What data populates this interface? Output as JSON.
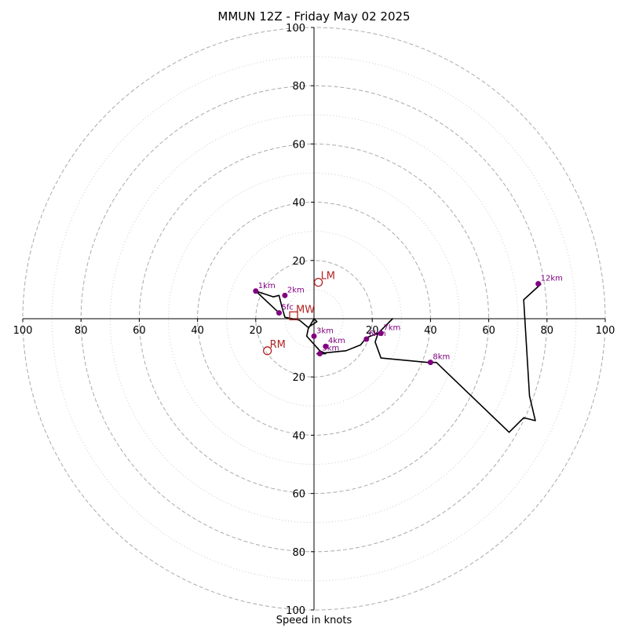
{
  "chart_data": {
    "type": "hodograph",
    "title": "MMUN 12Z - Friday May 02 2025",
    "xlabel": "Speed in knots",
    "ylabel": "",
    "xlim": [
      -100,
      100
    ],
    "ylim": [
      -100,
      100
    ],
    "ring_major": [
      20,
      40,
      60,
      80,
      100
    ],
    "ring_minor": [
      10,
      30,
      50,
      70,
      90
    ],
    "x_ticks": [
      {
        "value": -100,
        "label": "100"
      },
      {
        "value": -80,
        "label": "80"
      },
      {
        "value": -60,
        "label": "60"
      },
      {
        "value": -40,
        "label": "40"
      },
      {
        "value": -20,
        "label": "20"
      },
      {
        "value": 20,
        "label": "20"
      },
      {
        "value": 40,
        "label": "40"
      },
      {
        "value": 60,
        "label": "60"
      },
      {
        "value": 80,
        "label": "80"
      },
      {
        "value": 100,
        "label": "100"
      }
    ],
    "y_ticks": [
      {
        "value": 100,
        "label": "100"
      },
      {
        "value": 80,
        "label": "80"
      },
      {
        "value": 60,
        "label": "60"
      },
      {
        "value": 40,
        "label": "40"
      },
      {
        "value": 20,
        "label": "20"
      },
      {
        "value": -20,
        "label": "20"
      },
      {
        "value": -40,
        "label": "40"
      },
      {
        "value": -60,
        "label": "60"
      },
      {
        "value": -80,
        "label": "80"
      },
      {
        "value": -100,
        "label": "100"
      }
    ],
    "trace": [
      [
        -12,
        2
      ],
      [
        -20,
        9.5
      ],
      [
        -14,
        7.5
      ],
      [
        -12,
        8
      ],
      [
        -11,
        4
      ],
      [
        -10,
        0.5
      ],
      [
        -5,
        -0.5
      ],
      [
        -2,
        -3
      ],
      [
        1,
        -1
      ],
      [
        0,
        0
      ],
      [
        -2,
        -3.5
      ],
      [
        -2.5,
        -6
      ],
      [
        2,
        -11
      ],
      [
        4,
        -12
      ],
      [
        1,
        -12
      ],
      [
        11,
        -11
      ],
      [
        16,
        -9
      ],
      [
        18,
        -6.5
      ],
      [
        22,
        -5
      ],
      [
        27,
        0
      ],
      [
        22,
        -5
      ],
      [
        21,
        -8
      ],
      [
        23,
        -13.5
      ],
      [
        39,
        -15
      ],
      [
        42,
        -15
      ],
      [
        67,
        -39
      ],
      [
        72,
        -34
      ],
      [
        76,
        -35
      ],
      [
        74,
        -26.5
      ],
      [
        72,
        6.5
      ],
      [
        78,
        12
      ]
    ],
    "points": [
      {
        "label": "5fc",
        "u": -12,
        "v": 2
      },
      {
        "label": "1km",
        "u": -20,
        "v": 9.5
      },
      {
        "label": "2km",
        "u": -10,
        "v": 8
      },
      {
        "label": "3km",
        "u": 0,
        "v": -6
      },
      {
        "label": "4km",
        "u": 4,
        "v": -9.5
      },
      {
        "label": "5km",
        "u": 2,
        "v": -12
      },
      {
        "label": "6km",
        "u": 18,
        "v": -7
      },
      {
        "label": "7km",
        "u": 23,
        "v": -5
      },
      {
        "label": "8km",
        "u": 40,
        "v": -15
      },
      {
        "label": "12km",
        "u": 77,
        "v": 12
      }
    ],
    "markers": [
      {
        "label": "LM",
        "shape": "circle",
        "u": 1.5,
        "v": 12.5
      },
      {
        "label": "MW",
        "shape": "square",
        "u": -7,
        "v": 1
      },
      {
        "label": "RM",
        "shape": "circle",
        "u": -16,
        "v": -11
      }
    ],
    "colors": {
      "trace": "#000000",
      "points": "#800080",
      "markers": "#b22222",
      "rings": "#aaaaaa"
    }
  }
}
